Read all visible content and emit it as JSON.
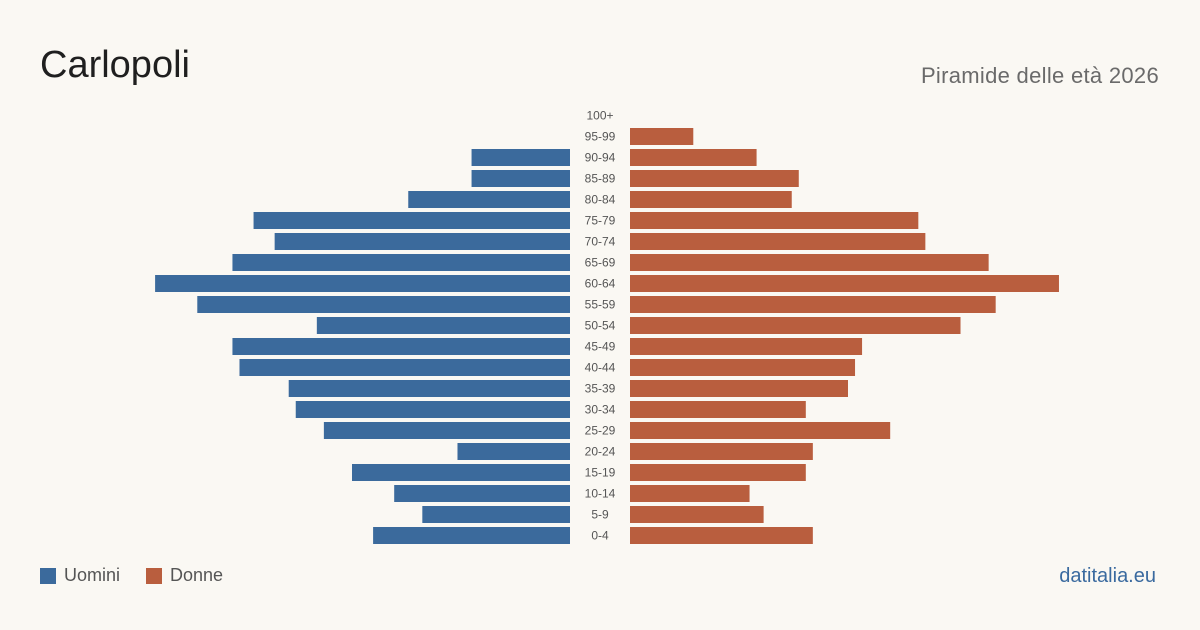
{
  "title": "Carlopoli",
  "subtitle": "Piramide delle età 2026",
  "brand": "datitalia.eu",
  "colors": {
    "men": "#3b6a9c",
    "women": "#b95e3e",
    "background": "#faf8f3"
  },
  "legend": [
    {
      "label": "Uomini",
      "color": "#3b6a9c"
    },
    {
      "label": "Donne",
      "color": "#b95e3e"
    }
  ],
  "chart_data": {
    "type": "bar",
    "orientation": "horizontal-pyramid",
    "categories": [
      "100+",
      "95-99",
      "90-94",
      "85-89",
      "80-84",
      "75-79",
      "70-74",
      "65-69",
      "60-64",
      "55-59",
      "50-54",
      "45-49",
      "40-44",
      "35-39",
      "30-34",
      "25-29",
      "20-24",
      "15-19",
      "10-14",
      "5-9",
      "0-4"
    ],
    "series": [
      {
        "name": "Uomini",
        "values": [
          0,
          0,
          14,
          14,
          23,
          45,
          42,
          48,
          59,
          53,
          36,
          48,
          47,
          40,
          39,
          35,
          16,
          31,
          25,
          21,
          28
        ]
      },
      {
        "name": "Donne",
        "values": [
          0,
          9,
          18,
          24,
          23,
          41,
          42,
          51,
          61,
          52,
          47,
          33,
          32,
          31,
          25,
          37,
          26,
          25,
          17,
          19,
          26
        ]
      }
    ],
    "xlim": [
      0,
      62
    ],
    "grid": false,
    "legend_position": "bottom-left"
  }
}
